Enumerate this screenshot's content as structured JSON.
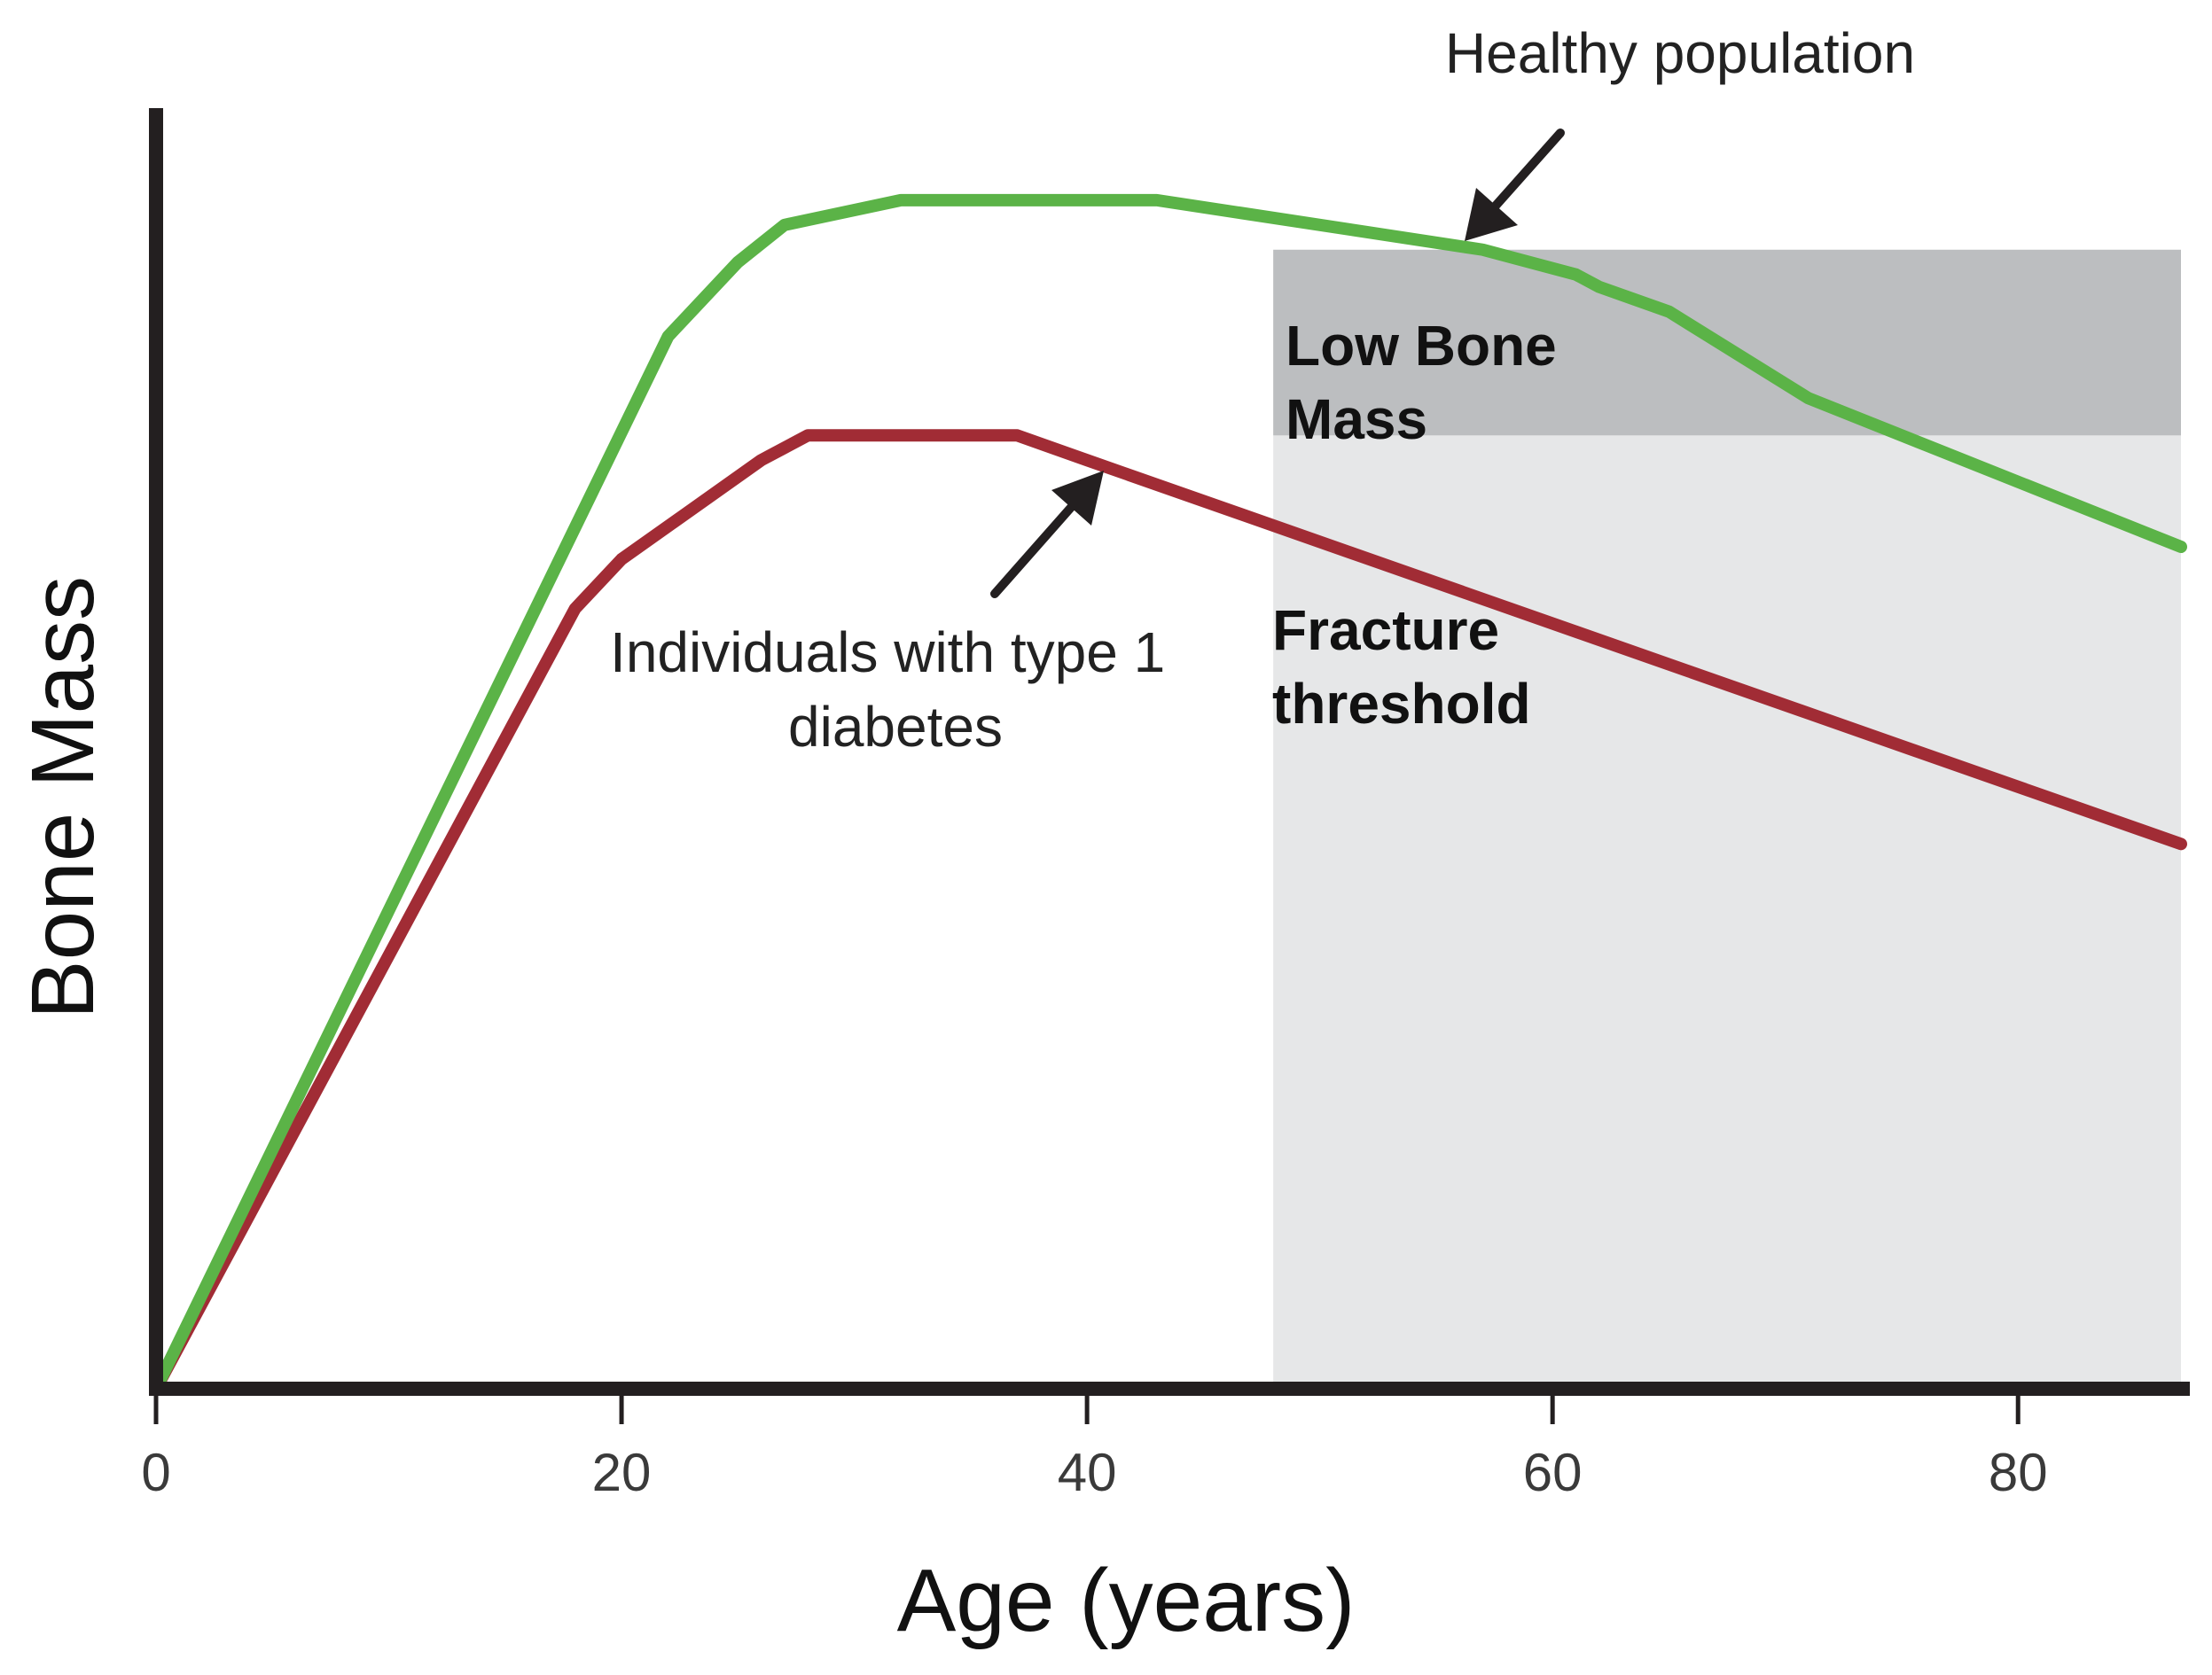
{
  "chart_data": {
    "type": "line",
    "title": "",
    "xlabel": "Age (years)",
    "ylabel": "Bone Mass",
    "xlim": [
      0,
      87
    ],
    "ylim": [
      0,
      100
    ],
    "x_ticks": [
      0,
      20,
      40,
      60,
      80
    ],
    "y_ticks": [],
    "grid": false,
    "legend": "none",
    "colors": {
      "healthy": "#5bb347",
      "type1": "#a12c35",
      "low_bone_mass": "#bcbec0",
      "fracture_region": "#e6e7e8",
      "axis": "#231f20",
      "arrow": "#231f20"
    },
    "series": [
      {
        "name": "Healthy population",
        "x": [
          0,
          22,
          25,
          27,
          32,
          40,
          43,
          57,
          61,
          62,
          65,
          71,
          87
        ],
        "y": [
          0,
          85,
          91,
          94,
          96,
          96,
          96,
          92,
          90,
          89,
          87,
          80,
          68
        ]
      },
      {
        "name": "Individuals with type 1 diabetes",
        "x": [
          0,
          18,
          20,
          26,
          28,
          35,
          37,
          40,
          87
        ],
        "y": [
          0,
          63,
          67,
          75,
          77,
          77,
          77,
          75,
          44
        ]
      }
    ],
    "regions": [
      {
        "label": "Low Bone Mass",
        "x_start": 48,
        "x_end": 87,
        "y_start": 77,
        "y_end": 92
      },
      {
        "label": "Fracture threshold",
        "x_start": 48,
        "x_end": 87,
        "y_start": 0,
        "y_end": 77
      }
    ],
    "annotations": [
      {
        "text": "Healthy population",
        "target_series": "Healthy population",
        "target_x": 56
      },
      {
        "text": "Individuals with type 1\ndiabetes",
        "target_series": "Individuals with type 1 diabetes",
        "target_x": 41
      }
    ]
  },
  "labels": {
    "low_bone_mass": [
      "Low Bone",
      "Mass"
    ],
    "fracture_threshold": [
      "Fracture",
      "threshold"
    ],
    "healthy_population": "Healthy population",
    "type1_lines": [
      "Individuals with type 1",
      "diabetes"
    ]
  }
}
